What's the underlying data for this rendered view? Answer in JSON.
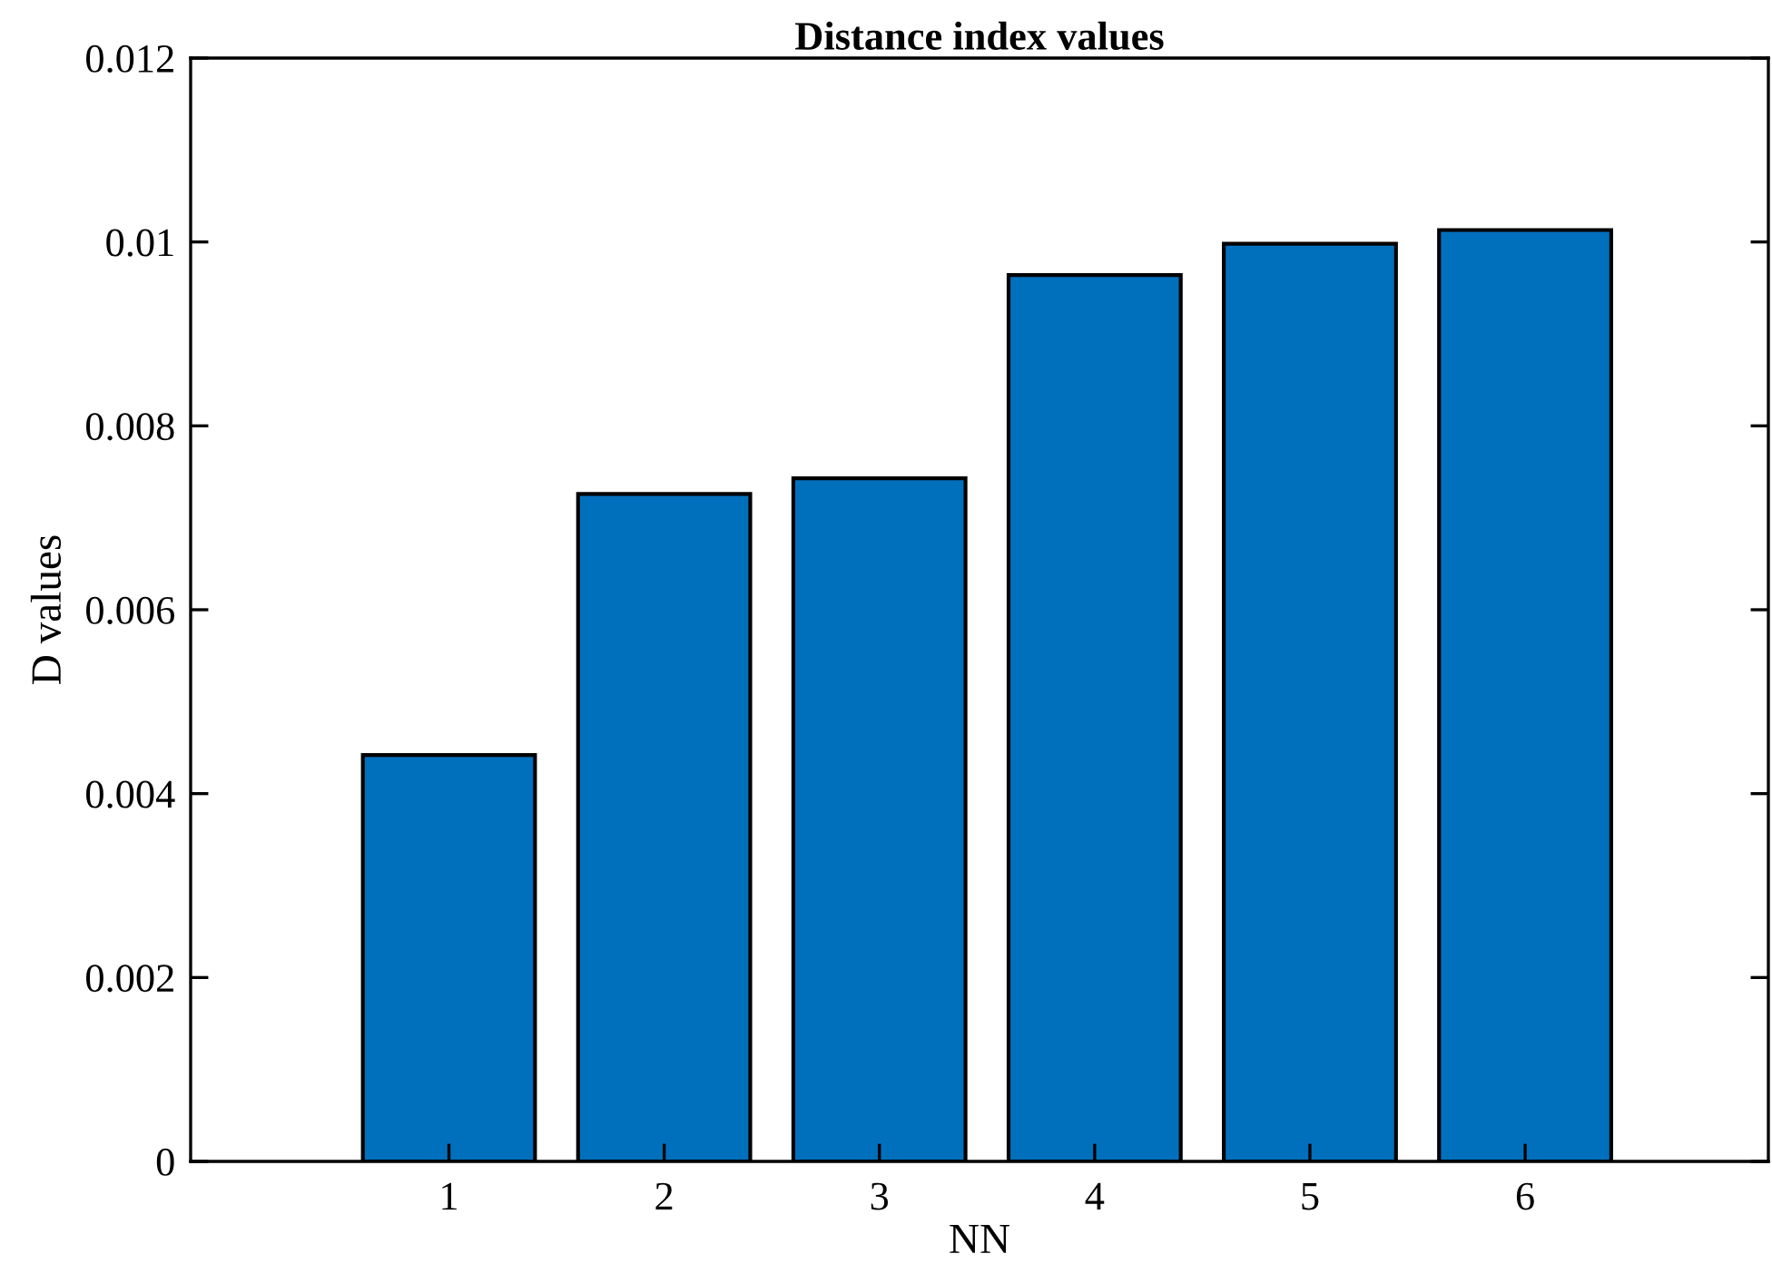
{
  "chart_data": {
    "type": "bar",
    "title": "Distance index values",
    "xlabel": "NN",
    "ylabel": "D values",
    "categories": [
      "1",
      "2",
      "3",
      "4",
      "5",
      "6"
    ],
    "values": [
      0.00442,
      0.00726,
      0.00743,
      0.00964,
      0.00998,
      0.01013
    ],
    "color": "#0070bd",
    "ylim": [
      0,
      0.012
    ],
    "yticks": [
      0,
      0.002,
      0.004,
      0.006,
      0.008,
      0.01,
      0.012
    ],
    "grid": false,
    "legend": false
  }
}
